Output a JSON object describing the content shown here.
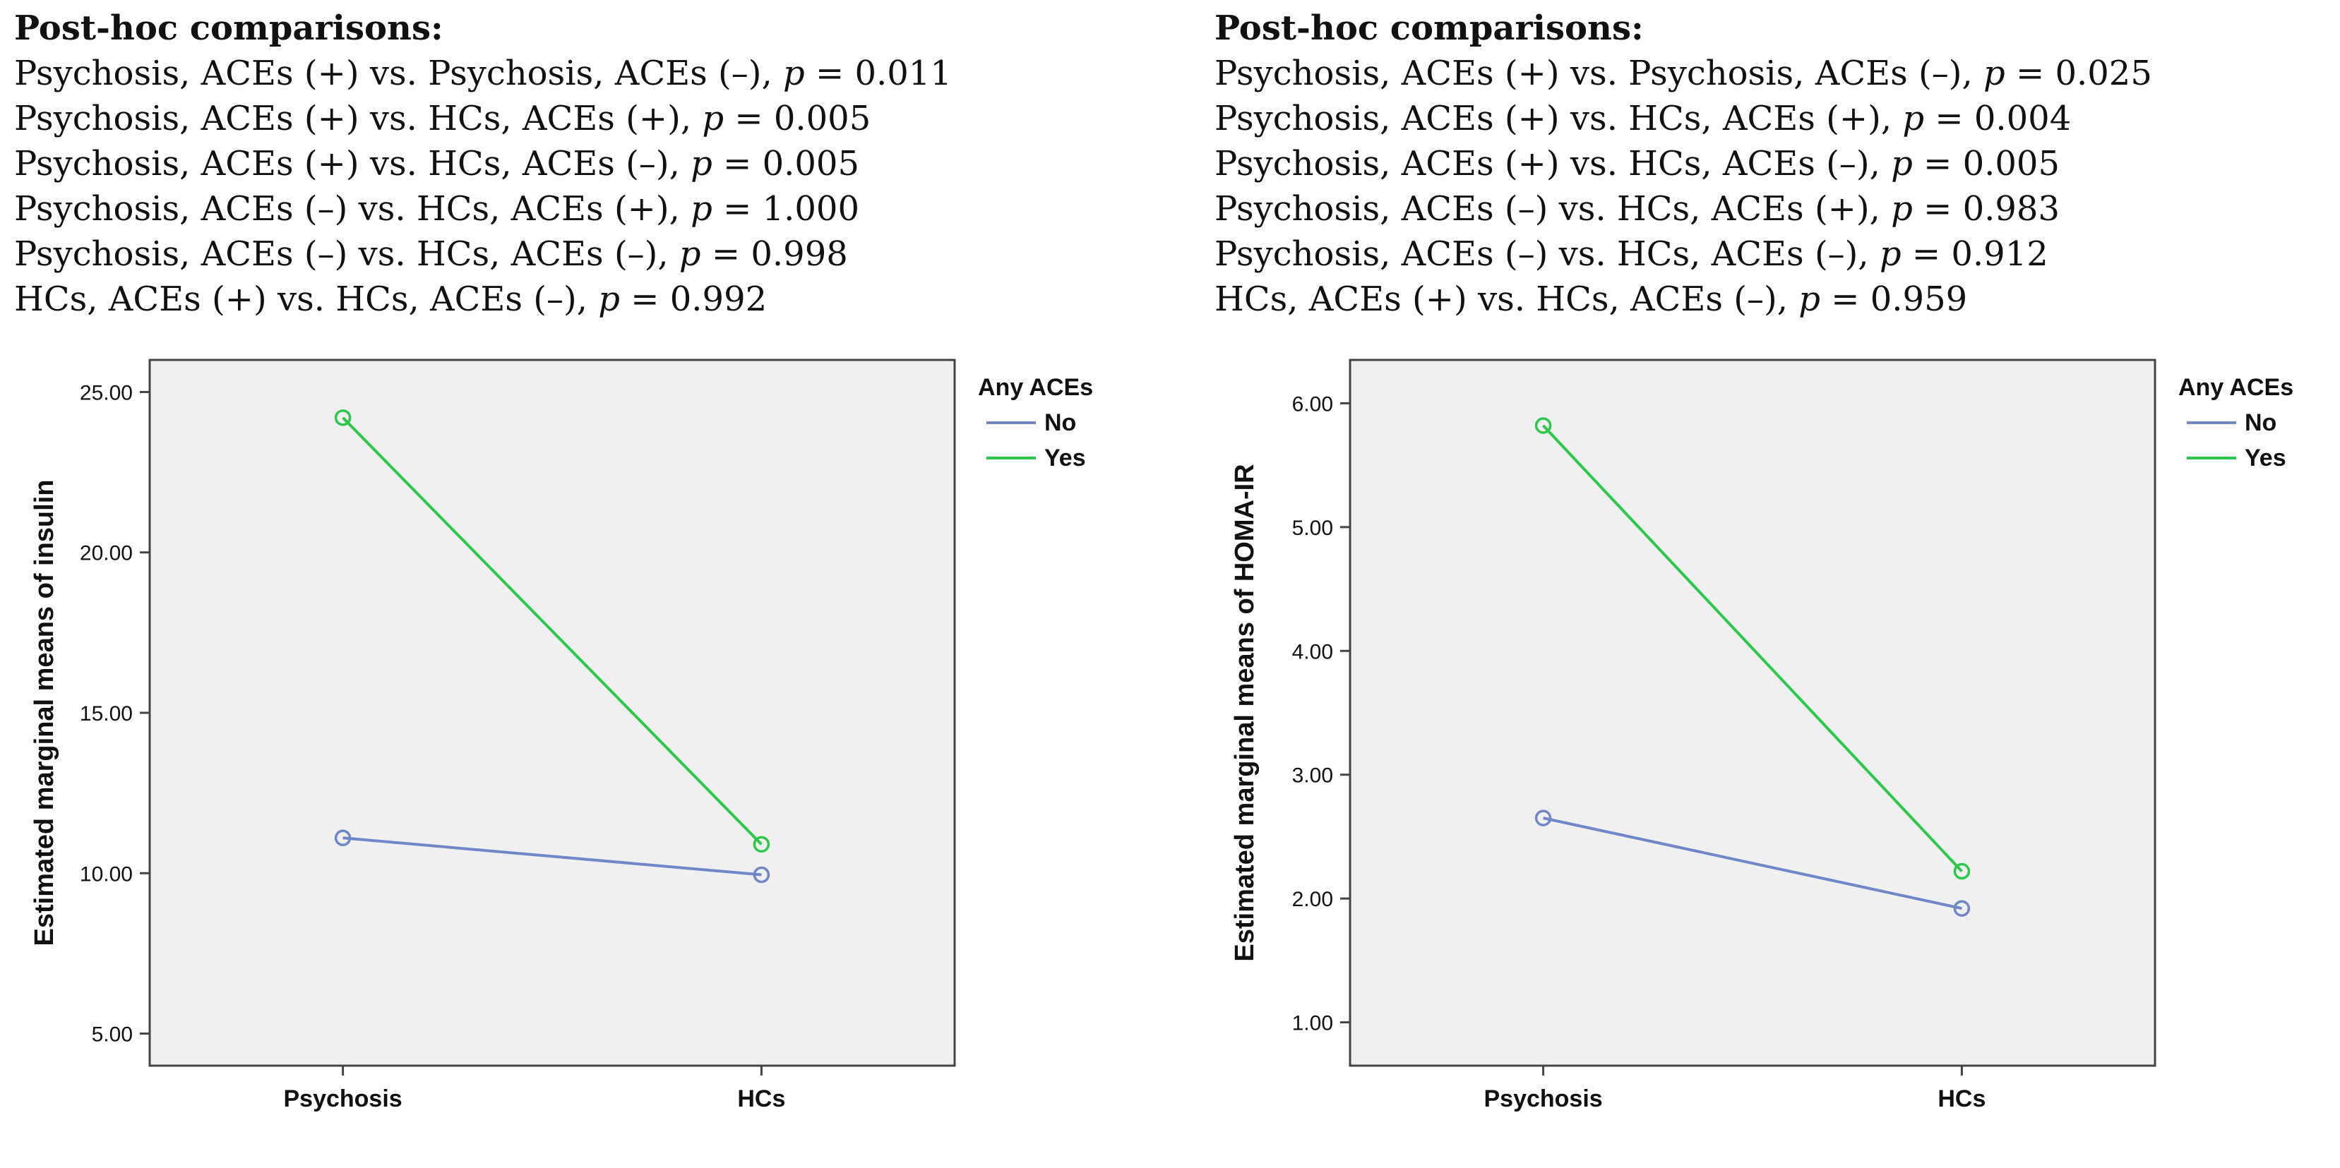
{
  "panels": [
    {
      "comparisons": {
        "title": "Post-hoc comparisons:",
        "lines": [
          {
            "text": "Psychosis, ACEs (+) vs. Psychosis, ACEs (–), ",
            "p_label": "p",
            "p_value": " = 0.011"
          },
          {
            "text": "Psychosis, ACEs (+) vs. HCs, ACEs (+), ",
            "p_label": "p",
            "p_value": " = 0.005"
          },
          {
            "text": "Psychosis, ACEs (+) vs. HCs, ACEs (–), ",
            "p_label": "p",
            "p_value": " = 0.005"
          },
          {
            "text": "Psychosis, ACEs (–) vs. HCs, ACEs (+), ",
            "p_label": "p",
            "p_value": " = 1.000"
          },
          {
            "text": "Psychosis, ACEs (–) vs. HCs, ACEs (–), ",
            "p_label": "p",
            "p_value": " = 0.998"
          },
          {
            "text": "HCs, ACEs (+) vs. HCs, ACEs (–), ",
            "p_label": "p",
            "p_value": " = 0.992"
          }
        ]
      }
    },
    {
      "comparisons": {
        "title": "Post-hoc comparisons:",
        "lines": [
          {
            "text": "Psychosis, ACEs (+) vs. Psychosis, ACEs (–), ",
            "p_label": "p",
            "p_value": " = 0.025"
          },
          {
            "text": "Psychosis, ACEs (+) vs. HCs, ACEs (+), ",
            "p_label": "p",
            "p_value": " = 0.004"
          },
          {
            "text": "Psychosis, ACEs (+) vs. HCs, ACEs (–), ",
            "p_label": "p",
            "p_value": " = 0.005"
          },
          {
            "text": "Psychosis, ACEs (–) vs. HCs, ACEs (+), ",
            "p_label": "p",
            "p_value": " = 0.983"
          },
          {
            "text": "Psychosis, ACEs (–) vs. HCs, ACEs (–), ",
            "p_label": "p",
            "p_value": " = 0.912"
          },
          {
            "text": "HCs, ACEs (+) vs. HCs, ACEs (–), ",
            "p_label": "p",
            "p_value": " = 0.959"
          }
        ]
      }
    }
  ],
  "chart_data": [
    {
      "type": "line",
      "categories": [
        "Psychosis",
        "HCs"
      ],
      "ylabel": "Estimated marginal means of insulin",
      "xlabel": "",
      "ylim": [
        4.0,
        26.0
      ],
      "yticks": [
        5.0,
        10.0,
        15.0,
        20.0,
        25.0
      ],
      "ytick_labels": [
        "5.00",
        "10.00",
        "15.00",
        "20.00",
        "25.00"
      ],
      "legend_title": "Any ACEs",
      "legend_position": "right",
      "grid": false,
      "series": [
        {
          "name": "No",
          "color": "#6f86c8",
          "values": [
            11.1,
            9.95
          ]
        },
        {
          "name": "Yes",
          "color": "#2bc84a",
          "values": [
            24.2,
            10.9
          ]
        }
      ]
    },
    {
      "type": "line",
      "categories": [
        "Psychosis",
        "HCs"
      ],
      "ylabel": "Estimated marginal means of HOMA-IR",
      "xlabel": "",
      "ylim": [
        0.65,
        6.35
      ],
      "yticks": [
        1.0,
        2.0,
        3.0,
        4.0,
        5.0,
        6.0
      ],
      "ytick_labels": [
        "1.00",
        "2.00",
        "3.00",
        "4.00",
        "5.00",
        "6.00"
      ],
      "legend_title": "Any ACEs",
      "legend_position": "right",
      "grid": false,
      "series": [
        {
          "name": "No",
          "color": "#6f86c8",
          "values": [
            2.65,
            1.92
          ]
        },
        {
          "name": "Yes",
          "color": "#2bc84a",
          "values": [
            5.82,
            2.22
          ]
        }
      ]
    }
  ]
}
